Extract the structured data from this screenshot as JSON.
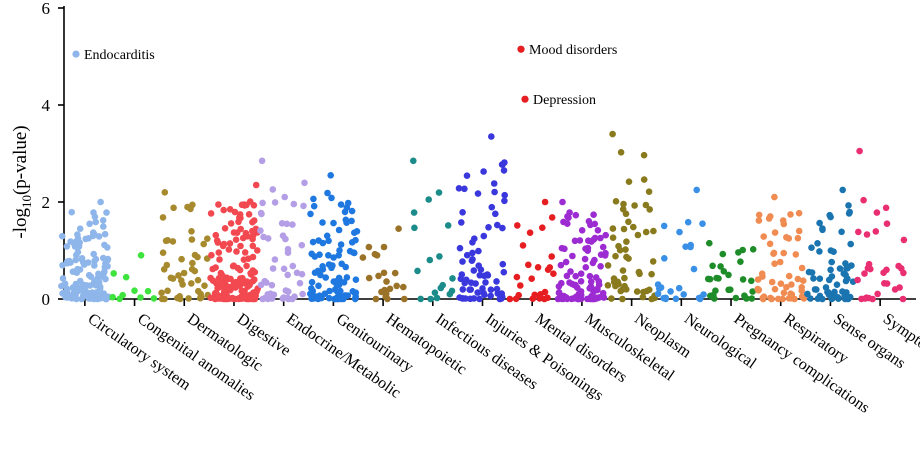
{
  "chart_data": {
    "type": "scatter",
    "title": "",
    "xlabel": "",
    "ylabel_parts": {
      "prefix": "-log",
      "sub": "10",
      "suffix": "(p-value)"
    },
    "ylim": [
      0,
      6
    ],
    "yticks": [
      0,
      2,
      4,
      6
    ],
    "categories": [
      {
        "name": "Circulatory system",
        "color": "#8fb6ea",
        "n": 130,
        "max": 2.0
      },
      {
        "name": "Congenital anomalies",
        "color": "#3ee33e",
        "n": 10,
        "max": 0.9
      },
      {
        "name": "Dermatologic",
        "color": "#a88a2e",
        "n": 45,
        "max": 2.2
      },
      {
        "name": "Digestive",
        "color": "#f24850",
        "n": 150,
        "max": 2.35
      },
      {
        "name": "Endocrine/Metabolic",
        "color": "#b49ee6",
        "n": 50,
        "max": 2.85
      },
      {
        "name": "Genitourinary",
        "color": "#1e78e0",
        "n": 100,
        "max": 2.55
      },
      {
        "name": "Hematopoietic",
        "color": "#9a7228",
        "n": 22,
        "max": 1.45
      },
      {
        "name": "Infectious diseases",
        "color": "#1b8c8a",
        "n": 18,
        "max": 2.85
      },
      {
        "name": "Injuries & Poisonings",
        "color": "#3a38dc",
        "n": 70,
        "max": 3.35
      },
      {
        "name": "Mental disorders",
        "color": "#e61e22",
        "n": 25,
        "max": 2.0
      },
      {
        "name": "Musculoskeletal",
        "color": "#9c2cd2",
        "n": 100,
        "max": 2.0
      },
      {
        "name": "Neoplasm",
        "color": "#8a7a1e",
        "n": 55,
        "max": 3.4
      },
      {
        "name": "Neurological",
        "color": "#3a8fe6",
        "n": 25,
        "max": 2.25
      },
      {
        "name": "Pregnancy complications",
        "color": "#1f8c2a",
        "n": 28,
        "max": 1.15
      },
      {
        "name": "Respiratory",
        "color": "#f08c52",
        "n": 55,
        "max": 2.1
      },
      {
        "name": "Sense organs",
        "color": "#1a74b0",
        "n": 60,
        "max": 2.25
      },
      {
        "name": "Symptoms",
        "color": "#ea2e72",
        "n": 30,
        "max": 3.05
      }
    ],
    "highlights": [
      {
        "label": "Endocarditis",
        "category": "Circulatory system",
        "value": 5.05,
        "color": "#8fb6ea"
      },
      {
        "label": "Mood disorders",
        "category": "Mental disorders",
        "value": 5.15,
        "color": "#e61e22"
      },
      {
        "label": "Depression",
        "category": "Mental disorders",
        "value": 4.12,
        "color": "#e61e22"
      }
    ]
  }
}
